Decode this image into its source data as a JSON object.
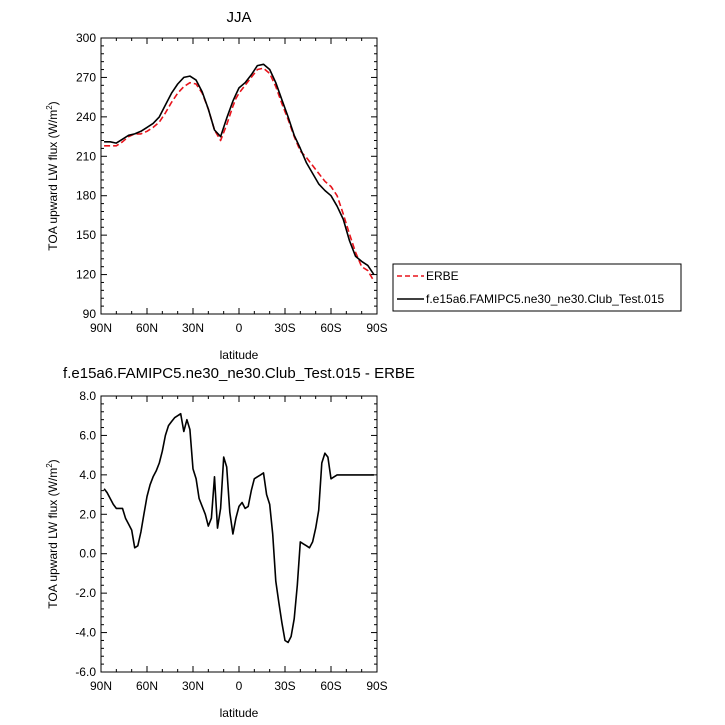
{
  "chart_data": [
    {
      "type": "line",
      "title": "JJA",
      "xlabel": "latitude",
      "ylabel_main": "TOA upward LW flux (W/m",
      "ylabel_sup": "2",
      "ylabel_close": ")",
      "xlim": [
        90,
        -90
      ],
      "ylim": [
        90,
        300
      ],
      "xticks": [
        90,
        60,
        30,
        0,
        -30,
        -60,
        -90
      ],
      "xtick_labels": [
        "90N",
        "60N",
        "30N",
        "0",
        "30S",
        "60S",
        "90S"
      ],
      "yticks": [
        90,
        120,
        150,
        180,
        210,
        240,
        270,
        300
      ],
      "ytick_labels": [
        "90",
        "120",
        "150",
        "180",
        "210",
        "240",
        "270",
        "300"
      ],
      "legend_position": "right",
      "series": [
        {
          "name": "ERBE",
          "color": "#e8141c",
          "dash": true,
          "x": [
            88,
            84,
            80,
            76,
            72,
            68,
            64,
            60,
            56,
            52,
            48,
            44,
            40,
            36,
            32,
            28,
            24,
            20,
            16,
            12,
            8,
            4,
            2,
            0,
            -4,
            -8,
            -12,
            -16,
            -20,
            -24,
            -28,
            -32,
            -36,
            -40,
            -44,
            -48,
            -52,
            -56,
            -60,
            -64,
            -68,
            -72,
            -76,
            -80,
            -84,
            -88
          ],
          "y": [
            218,
            218,
            218,
            221,
            225,
            227,
            227,
            229,
            232,
            236,
            243,
            251,
            258,
            263,
            266,
            265,
            258,
            246,
            230,
            222,
            234,
            248,
            254,
            258,
            264,
            270,
            276,
            277,
            273,
            263,
            250,
            238,
            225,
            214,
            209,
            203,
            197,
            191,
            187,
            180,
            166,
            151,
            137,
            126,
            123,
            115
          ]
        },
        {
          "name": "f.e15a6.FAMIPC5.ne30_ne30.Club_Test.015",
          "color": "#000000",
          "dash": false,
          "x": [
            88,
            84,
            80,
            76,
            72,
            68,
            64,
            60,
            56,
            52,
            48,
            44,
            40,
            36,
            32,
            28,
            24,
            20,
            16,
            12,
            8,
            4,
            2,
            0,
            -4,
            -8,
            -12,
            -16,
            -20,
            -24,
            -28,
            -32,
            -36,
            -40,
            -44,
            -48,
            -52,
            -56,
            -60,
            -64,
            -68,
            -72,
            -76,
            -80,
            -84,
            -88
          ],
          "y": [
            221,
            221,
            220,
            223,
            226,
            227,
            229,
            232,
            235,
            240,
            249,
            258,
            265,
            270,
            271,
            268,
            259,
            246,
            230,
            225,
            239,
            252,
            257,
            262,
            266,
            272,
            279,
            280,
            276,
            266,
            253,
            240,
            226,
            216,
            205,
            197,
            189,
            184,
            180,
            172,
            162,
            146,
            134,
            130,
            127,
            120
          ]
        }
      ]
    },
    {
      "type": "line",
      "title": "f.e15a6.FAMIPC5.ne30_ne30.Club_Test.015 - ERBE",
      "xlabel": "latitude",
      "ylabel_main": "TOA upward LW flux (W/m",
      "ylabel_sup": "2",
      "ylabel_close": ")",
      "xlim": [
        90,
        -90
      ],
      "ylim": [
        -6,
        8
      ],
      "xticks": [
        90,
        60,
        30,
        0,
        -30,
        -60,
        -90
      ],
      "xtick_labels": [
        "90N",
        "60N",
        "30N",
        "0",
        "30S",
        "60S",
        "90S"
      ],
      "yticks": [
        -6,
        -4,
        -2,
        0,
        2,
        4,
        6,
        8
      ],
      "ytick_labels": [
        "-6.0",
        "-4.0",
        "-2.0",
        "0.0",
        "2.0",
        "4.0",
        "6.0",
        "8.0"
      ],
      "series": [
        {
          "color": "#000000",
          "x": [
            88,
            86,
            84,
            82,
            80,
            78,
            76,
            74,
            72,
            70,
            68,
            66,
            64,
            62,
            60,
            58,
            56,
            54,
            52,
            50,
            48,
            46,
            44,
            42,
            40,
            38,
            36,
            34,
            32,
            30,
            28,
            26,
            24,
            22,
            20,
            18,
            16,
            14,
            12,
            10,
            8,
            6,
            4,
            2,
            0,
            -2,
            -4,
            -6,
            -8,
            -10,
            -12,
            -14,
            -16,
            -18,
            -20,
            -22,
            -24,
            -26,
            -28,
            -30,
            -32,
            -34,
            -36,
            -38,
            -40,
            -42,
            -44,
            -46,
            -48,
            -50,
            -52,
            -54,
            -56,
            -58,
            -60,
            -62,
            -64,
            -66,
            -68,
            -70,
            -72,
            -74,
            -76,
            -78,
            -80,
            -82,
            -84,
            -86,
            -88
          ],
          "y": [
            3.3,
            3.1,
            2.8,
            2.5,
            2.3,
            2.3,
            2.3,
            1.8,
            1.5,
            1.2,
            0.3,
            0.4,
            1.1,
            2.0,
            2.9,
            3.5,
            3.9,
            4.2,
            4.6,
            5.2,
            6.0,
            6.5,
            6.7,
            6.9,
            7.0,
            7.1,
            6.2,
            6.8,
            6.3,
            4.3,
            3.8,
            2.8,
            2.4,
            2.0,
            1.4,
            1.8,
            3.9,
            1.3,
            2.3,
            4.9,
            4.4,
            2.1,
            1.0,
            1.8,
            2.4,
            2.6,
            2.3,
            2.4,
            3.2,
            3.8,
            3.9,
            4.0,
            4.1,
            3.0,
            2.5,
            1.0,
            -1.4,
            -2.5,
            -3.5,
            -4.4,
            -4.5,
            -4.2,
            -3.3,
            -1.6,
            0.6,
            0.5,
            0.4,
            0.3,
            0.6,
            1.3,
            2.2,
            4.6,
            5.1,
            4.9,
            3.8,
            3.9,
            4.0,
            4.0,
            4.0,
            4.0,
            4.0,
            4.0,
            4.0,
            4.0,
            4.0,
            4.0,
            4.0,
            4.0,
            4.0
          ]
        }
      ]
    }
  ]
}
